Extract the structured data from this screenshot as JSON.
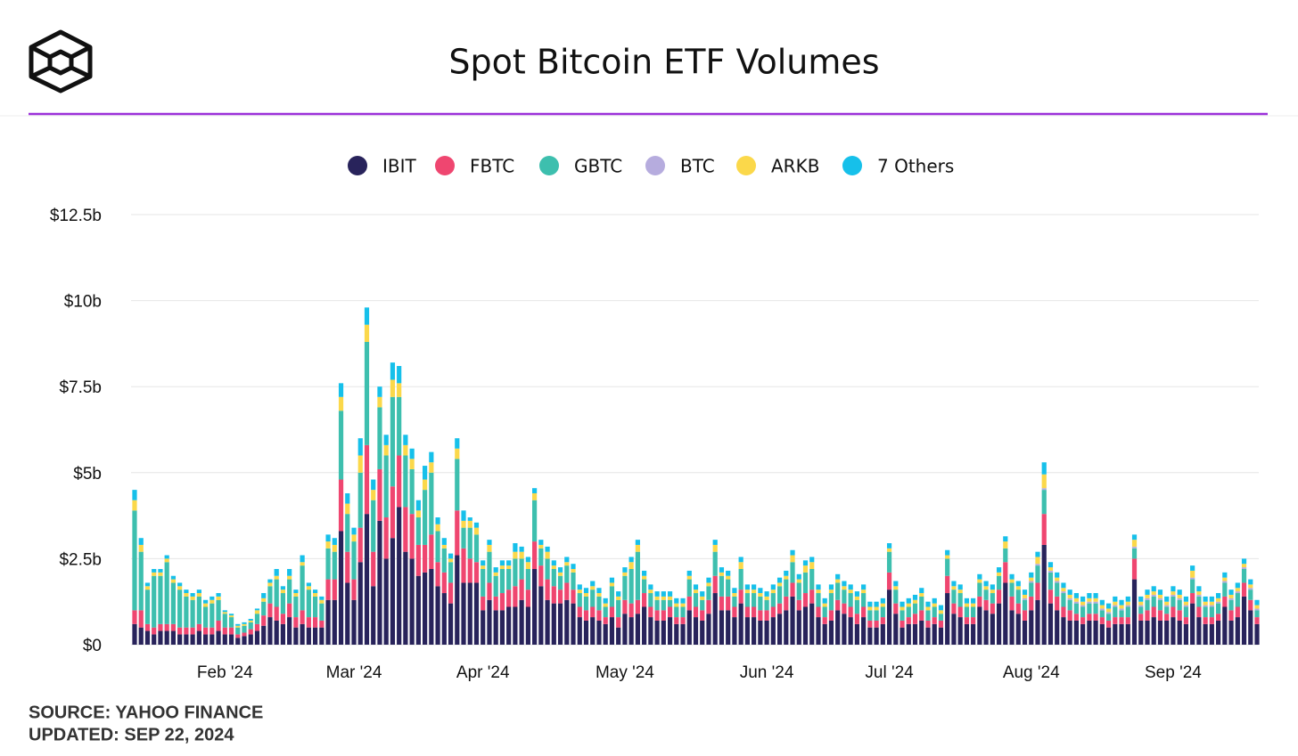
{
  "chart_data": {
    "type": "stacked_bar",
    "title": "Spot Bitcoin ETF Volumes",
    "source": "SOURCE: YAHOO FINANCE",
    "updated": "UPDATED: SEP 22, 2024",
    "ylim": [
      0,
      12.5
    ],
    "yticks": [
      {
        "value": 0,
        "label": "$0"
      },
      {
        "value": 2.5,
        "label": "$2.5b"
      },
      {
        "value": 5,
        "label": "$5b"
      },
      {
        "value": 7.5,
        "label": "$7.5b"
      },
      {
        "value": 10,
        "label": "$10b"
      },
      {
        "value": 12.5,
        "label": "$12.5b"
      }
    ],
    "grid": true,
    "legend": "top",
    "categories": [
      null,
      null,
      null,
      null,
      null,
      null,
      null,
      null,
      null,
      null,
      null,
      null,
      null,
      null,
      "Feb '24",
      null,
      null,
      null,
      null,
      null,
      null,
      null,
      null,
      null,
      null,
      null,
      null,
      null,
      null,
      null,
      null,
      null,
      null,
      null,
      "Mar '24",
      null,
      null,
      null,
      null,
      null,
      null,
      null,
      null,
      null,
      null,
      null,
      null,
      null,
      null,
      null,
      null,
      null,
      null,
      null,
      "Apr '24",
      null,
      null,
      null,
      null,
      null,
      null,
      null,
      null,
      null,
      null,
      null,
      null,
      null,
      null,
      null,
      null,
      null,
      null,
      null,
      null,
      null,
      "May '24",
      null,
      null,
      null,
      null,
      null,
      null,
      null,
      null,
      null,
      null,
      null,
      null,
      null,
      null,
      null,
      null,
      null,
      null,
      null,
      null,
      null,
      "Jun '24",
      null,
      null,
      null,
      null,
      null,
      null,
      null,
      null,
      null,
      null,
      null,
      null,
      null,
      null,
      null,
      null,
      null,
      null,
      "Jul '24",
      null,
      null,
      null,
      null,
      null,
      null,
      null,
      null,
      null,
      null,
      null,
      null,
      null,
      null,
      null,
      null,
      null,
      null,
      null,
      null,
      null,
      "Aug '24",
      null,
      null,
      null,
      null,
      null,
      null,
      null,
      null,
      null,
      null,
      null,
      null,
      null,
      null,
      null,
      null,
      null,
      null,
      null,
      null,
      null,
      "Sep '24",
      null,
      null,
      null,
      null,
      null,
      null,
      null,
      null,
      null,
      null,
      null,
      null,
      null
    ],
    "series": [
      {
        "name": "IBIT",
        "color": "#28235b",
        "values": [
          0.6,
          0.5,
          0.4,
          0.3,
          0.4,
          0.4,
          0.4,
          0.3,
          0.3,
          0.3,
          0.4,
          0.3,
          0.3,
          0.4,
          0.3,
          0.3,
          0.2,
          0.25,
          0.3,
          0.4,
          0.55,
          0.8,
          0.7,
          0.6,
          0.8,
          0.5,
          0.6,
          0.5,
          0.5,
          0.5,
          1.3,
          1.3,
          3.3,
          1.8,
          1.3,
          2.4,
          3.8,
          1.7,
          3.6,
          2.5,
          3.1,
          4,
          2.7,
          2.5,
          2,
          2.1,
          2.2,
          1.7,
          1.5,
          1.2,
          2.6,
          1.8,
          1.8,
          1.8,
          1,
          1.3,
          1,
          1,
          1.1,
          1.1,
          1.3,
          1.1,
          2.2,
          1.7,
          1.3,
          1.2,
          1.2,
          1.3,
          1.2,
          0.8,
          0.7,
          0.8,
          0.7,
          0.6,
          0.8,
          0.5,
          0.9,
          0.8,
          0.9,
          1.1,
          0.8,
          0.7,
          0.7,
          0.8,
          0.6,
          0.6,
          1,
          0.8,
          0.7,
          0.9,
          1.5,
          1,
          1,
          0.8,
          1.2,
          0.8,
          0.8,
          0.7,
          0.7,
          0.8,
          0.9,
          1,
          1.4,
          1,
          1.1,
          1.2,
          0.8,
          0.6,
          0.7,
          1,
          0.9,
          0.8,
          0.6,
          0.8,
          0.5,
          0.5,
          0.6,
          1.6,
          0.9,
          0.5,
          0.6,
          0.6,
          0.7,
          0.5,
          0.6,
          0.5,
          1.5,
          0.9,
          0.8,
          0.6,
          0.6,
          1.1,
          1,
          0.9,
          1.2,
          1.8,
          1,
          0.9,
          0.7,
          1,
          1.3,
          2.9,
          1.2,
          1,
          0.8,
          0.7,
          0.7,
          0.6,
          0.7,
          0.7,
          0.6,
          0.5,
          0.6,
          0.6,
          0.6,
          1.9,
          0.7,
          0.7,
          0.8,
          0.7,
          0.7,
          0.8,
          0.7,
          0.6,
          1.2,
          0.8,
          0.6,
          0.6,
          0.7,
          1.1,
          0.7,
          0.8,
          1.4,
          1,
          0.6
        ]
      },
      {
        "name": "FBTC",
        "color": "#ef4670",
        "values": [
          0.4,
          0.5,
          0.2,
          0.2,
          0.2,
          0.2,
          0.2,
          0.2,
          0.2,
          0.2,
          0.2,
          0.2,
          0.2,
          0.3,
          0.2,
          0.2,
          0.1,
          0.1,
          0.15,
          0.2,
          0.3,
          0.4,
          0.4,
          0.3,
          0.4,
          0.3,
          0.4,
          0.3,
          0.3,
          0.2,
          0.6,
          0.6,
          1.5,
          0.9,
          0.6,
          1,
          2,
          1,
          1.5,
          1.2,
          1.5,
          1.5,
          1.3,
          1.3,
          0.9,
          0.8,
          1,
          0.7,
          0.6,
          0.6,
          1.3,
          1,
          0.7,
          0.6,
          0.4,
          0.5,
          0.4,
          0.5,
          0.5,
          0.6,
          0.6,
          0.5,
          0.8,
          0.6,
          0.6,
          0.5,
          0.4,
          0.5,
          0.4,
          0.3,
          0.3,
          0.3,
          0.3,
          0.2,
          0.3,
          0.3,
          0.4,
          0.4,
          0.4,
          0.4,
          0.3,
          0.3,
          0.3,
          0.3,
          0.2,
          0.2,
          0.4,
          0.3,
          0.3,
          0.4,
          0.5,
          0.4,
          0.4,
          0.3,
          0.4,
          0.3,
          0.3,
          0.3,
          0.3,
          0.3,
          0.3,
          0.4,
          0.4,
          0.3,
          0.4,
          0.4,
          0.3,
          0.2,
          0.3,
          0.3,
          0.3,
          0.3,
          0.3,
          0.3,
          0.2,
          0.2,
          0.2,
          0.5,
          0.3,
          0.2,
          0.2,
          0.3,
          0.3,
          0.2,
          0.2,
          0.2,
          0.5,
          0.3,
          0.3,
          0.2,
          0.2,
          0.3,
          0.3,
          0.3,
          0.4,
          0.6,
          0.4,
          0.3,
          0.3,
          0.4,
          0.5,
          0.9,
          0.4,
          0.4,
          0.3,
          0.3,
          0.2,
          0.2,
          0.2,
          0.2,
          0.2,
          0.2,
          0.2,
          0.2,
          0.2,
          0.6,
          0.2,
          0.3,
          0.3,
          0.3,
          0.2,
          0.3,
          0.3,
          0.2,
          0.3,
          0.3,
          0.2,
          0.2,
          0.2,
          0.3,
          0.3,
          0.3,
          0.4,
          0.3,
          0.2
        ]
      },
      {
        "name": "GBTC",
        "color": "#3dbfae",
        "values": [
          2.9,
          1.7,
          1,
          1.5,
          1.4,
          1.8,
          1.2,
          1.1,
          0.9,
          0.8,
          0.8,
          0.6,
          0.7,
          0.6,
          0.4,
          0.3,
          0.2,
          0.2,
          0.2,
          0.3,
          0.4,
          0.5,
          0.8,
          0.6,
          0.7,
          0.6,
          1.3,
          0.8,
          0.6,
          0.5,
          0.9,
          0.8,
          2,
          1.1,
          1.1,
          1.6,
          3,
          1.5,
          1.8,
          1.8,
          2.6,
          1.7,
          1.5,
          1.3,
          0.8,
          1.6,
          1.8,
          0.9,
          0.7,
          0.6,
          1.5,
          0.6,
          0.9,
          0.8,
          0.8,
          0.9,
          0.6,
          0.7,
          0.6,
          0.8,
          0.6,
          0.6,
          1.2,
          0.5,
          0.6,
          0.5,
          0.4,
          0.5,
          0.5,
          0.4,
          0.4,
          0.5,
          0.4,
          0.3,
          0.6,
          0.5,
          0.7,
          1,
          1.4,
          0.4,
          0.4,
          0.3,
          0.3,
          0.2,
          0.3,
          0.3,
          0.5,
          0.4,
          0.3,
          0.4,
          0.7,
          0.6,
          0.5,
          0.3,
          0.6,
          0.4,
          0.4,
          0.4,
          0.3,
          0.4,
          0.5,
          0.5,
          0.6,
          0.5,
          0.6,
          0.6,
          0.4,
          0.3,
          0.5,
          0.5,
          0.4,
          0.4,
          0.4,
          0.4,
          0.3,
          0.3,
          0.3,
          0.6,
          0.4,
          0.3,
          0.3,
          0.3,
          0.4,
          0.3,
          0.3,
          0.2,
          0.5,
          0.4,
          0.4,
          0.3,
          0.3,
          0.4,
          0.3,
          0.3,
          0.4,
          0.4,
          0.4,
          0.4,
          0.3,
          0.4,
          0.5,
          0.7,
          0.5,
          0.4,
          0.4,
          0.3,
          0.3,
          0.3,
          0.3,
          0.3,
          0.2,
          0.2,
          0.3,
          0.2,
          0.3,
          0.3,
          0.2,
          0.3,
          0.3,
          0.3,
          0.2,
          0.3,
          0.3,
          0.3,
          0.4,
          0.3,
          0.3,
          0.3,
          0.3,
          0.4,
          0.3,
          0.4,
          0.4,
          0.3,
          0.2
        ]
      },
      {
        "name": "BTC",
        "color": "#b6acde",
        "values": [
          0,
          0,
          0,
          0,
          0,
          0,
          0,
          0,
          0,
          0,
          0,
          0,
          0,
          0,
          0,
          0,
          0,
          0,
          0,
          0,
          0,
          0,
          0,
          0,
          0,
          0,
          0,
          0,
          0,
          0,
          0,
          0,
          0,
          0,
          0,
          0,
          0,
          0,
          0,
          0,
          0,
          0,
          0,
          0,
          0,
          0,
          0,
          0,
          0,
          0,
          0,
          0,
          0,
          0,
          0,
          0,
          0,
          0,
          0,
          0,
          0,
          0,
          0,
          0,
          0,
          0,
          0,
          0,
          0,
          0,
          0,
          0,
          0,
          0,
          0,
          0,
          0,
          0,
          0,
          0,
          0,
          0,
          0,
          0,
          0,
          0,
          0,
          0,
          0,
          0,
          0,
          0,
          0,
          0,
          0,
          0,
          0,
          0,
          0,
          0,
          0,
          0,
          0,
          0,
          0,
          0,
          0,
          0,
          0,
          0,
          0,
          0,
          0,
          0,
          0,
          0,
          0,
          0,
          0,
          0,
          0,
          0,
          0,
          0,
          0,
          0,
          0,
          0,
          0,
          0,
          0,
          0,
          0,
          0,
          0,
          0,
          0,
          0,
          0.05,
          0.05,
          0.05,
          0.05,
          0.05,
          0.05,
          0.05,
          0.05,
          0.05,
          0.05,
          0.05,
          0.05,
          0.05,
          0.05,
          0.05,
          0.05,
          0.05,
          0.05,
          0.05,
          0.05,
          0.05,
          0.05,
          0.05,
          0.05,
          0.05,
          0.05,
          0.05,
          0.05,
          0.05,
          0.05,
          0.05,
          0.05,
          0.05,
          0.05,
          0.05,
          0.05,
          0.05
        ]
      },
      {
        "name": "ARKB",
        "color": "#fbd84a",
        "values": [
          0.3,
          0.2,
          0.1,
          0.1,
          0.1,
          0.1,
          0.1,
          0.1,
          0.1,
          0.1,
          0.1,
          0.1,
          0.1,
          0.1,
          0.05,
          0.05,
          0.05,
          0.05,
          0.05,
          0.1,
          0.1,
          0.1,
          0.1,
          0.1,
          0.1,
          0.1,
          0.1,
          0.1,
          0.1,
          0.1,
          0.2,
          0.2,
          0.4,
          0.3,
          0.2,
          0.5,
          0.5,
          0.3,
          0.3,
          0.3,
          0.5,
          0.4,
          0.3,
          0.3,
          0.2,
          0.3,
          0.3,
          0.2,
          0.1,
          0.1,
          0.3,
          0.2,
          0.2,
          0.2,
          0.1,
          0.2,
          0.1,
          0.1,
          0.1,
          0.2,
          0.2,
          0.2,
          0.2,
          0.1,
          0.2,
          0.1,
          0.1,
          0.1,
          0.1,
          0.1,
          0.1,
          0.1,
          0.1,
          0.1,
          0.1,
          0.1,
          0.1,
          0.2,
          0.2,
          0.1,
          0.1,
          0.1,
          0.1,
          0.1,
          0.1,
          0.1,
          0.1,
          0.1,
          0.1,
          0.1,
          0.2,
          0.1,
          0.1,
          0.1,
          0.2,
          0.1,
          0.1,
          0.1,
          0.1,
          0.1,
          0.1,
          0.1,
          0.2,
          0.1,
          0.2,
          0.2,
          0.1,
          0.1,
          0.1,
          0.1,
          0.1,
          0.1,
          0.1,
          0.1,
          0.1,
          0.1,
          0.1,
          0.1,
          0.1,
          0.1,
          0.1,
          0.1,
          0.1,
          0.1,
          0.1,
          0.1,
          0.1,
          0.1,
          0.1,
          0.1,
          0.1,
          0.1,
          0.1,
          0.1,
          0.1,
          0.2,
          0.1,
          0.1,
          0.1,
          0.1,
          0.2,
          0.4,
          0.1,
          0.1,
          0.1,
          0.1,
          0.1,
          0.1,
          0.1,
          0.1,
          0.1,
          0.1,
          0.1,
          0.1,
          0.1,
          0.2,
          0.1,
          0.1,
          0.1,
          0.1,
          0.1,
          0.1,
          0.1,
          0.1,
          0.2,
          0.1,
          0.1,
          0.1,
          0.1,
          0.1,
          0.1,
          0.1,
          0.1,
          0.1,
          0.1
        ]
      },
      {
        "name": "7 Others",
        "color": "#16c0ea",
        "values": [
          0.3,
          0.2,
          0.1,
          0.1,
          0.1,
          0.1,
          0.1,
          0.1,
          0.1,
          0.1,
          0.1,
          0.1,
          0.1,
          0.1,
          0.05,
          0.05,
          0.05,
          0.05,
          0.05,
          0.05,
          0.15,
          0.1,
          0.2,
          0.1,
          0.2,
          0.1,
          0.2,
          0.1,
          0.1,
          0.1,
          0.2,
          0.2,
          0.4,
          0.3,
          0.2,
          0.5,
          0.5,
          0.3,
          0.3,
          0.3,
          0.5,
          0.5,
          0.3,
          0.3,
          0.3,
          0.4,
          0.3,
          0.2,
          0.2,
          0.15,
          0.3,
          0.3,
          0.1,
          0.15,
          0.15,
          0.15,
          0.15,
          0.15,
          0.15,
          0.25,
          0.15,
          0.15,
          0.15,
          0.15,
          0.15,
          0.15,
          0.15,
          0.15,
          0.15,
          0.15,
          0.15,
          0.15,
          0.15,
          0.15,
          0.15,
          0.15,
          0.15,
          0.15,
          0.15,
          0.15,
          0.15,
          0.15,
          0.15,
          0.15,
          0.15,
          0.15,
          0.15,
          0.15,
          0.15,
          0.15,
          0.15,
          0.15,
          0.15,
          0.15,
          0.15,
          0.15,
          0.15,
          0.15,
          0.15,
          0.15,
          0.15,
          0.15,
          0.15,
          0.15,
          0.15,
          0.15,
          0.15,
          0.15,
          0.15,
          0.15,
          0.15,
          0.15,
          0.15,
          0.15,
          0.15,
          0.15,
          0.15,
          0.15,
          0.15,
          0.15,
          0.15,
          0.15,
          0.15,
          0.15,
          0.15,
          0.15,
          0.15,
          0.15,
          0.15,
          0.15,
          0.15,
          0.15,
          0.15,
          0.15,
          0.15,
          0.15,
          0.15,
          0.15,
          0.15,
          0.15,
          0.15,
          0.35,
          0.15,
          0.15,
          0.15,
          0.15,
          0.15,
          0.15,
          0.15,
          0.15,
          0.15,
          0.15,
          0.15,
          0.15,
          0.15,
          0.15,
          0.15,
          0.15,
          0.15,
          0.15,
          0.15,
          0.15,
          0.15,
          0.15,
          0.15,
          0.15,
          0.15,
          0.15,
          0.15,
          0.15,
          0.15,
          0.15,
          0.15,
          0.15,
          0.15
        ]
      }
    ]
  }
}
